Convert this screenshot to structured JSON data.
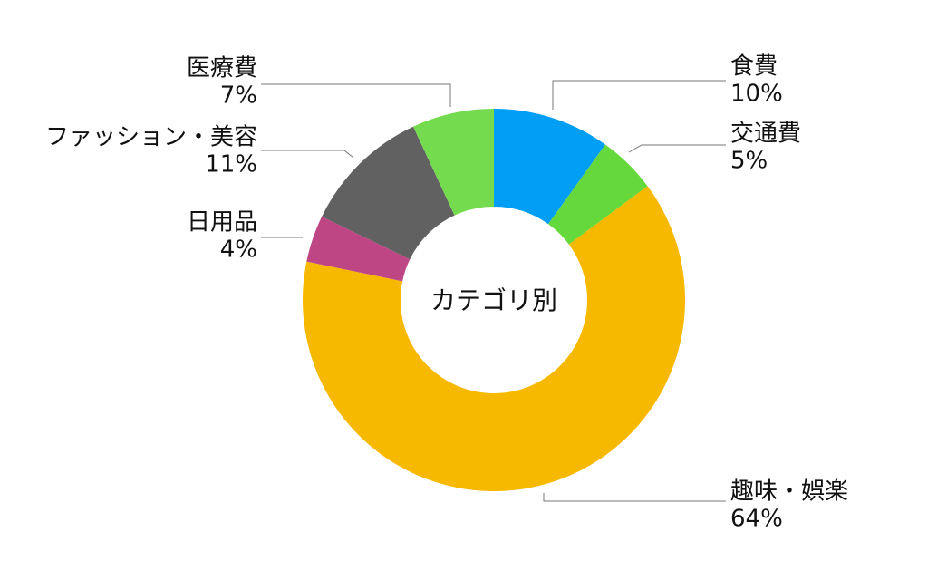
{
  "chart_data": {
    "type": "pie",
    "variant": "donut",
    "center_label": "カテゴリ別",
    "unit": "%",
    "slices": [
      {
        "label": "食費",
        "value": 10,
        "display": "10%",
        "color": "#009FF5"
      },
      {
        "label": "交通費",
        "value": 5,
        "display": "5%",
        "color": "#65D93B"
      },
      {
        "label": "趣味・娯楽",
        "value": 64,
        "display": "64%",
        "color": "#F7B800"
      },
      {
        "label": "日用品",
        "value": 4,
        "display": "4%",
        "color": "#BF4685"
      },
      {
        "label": "ファッション・美容",
        "value": 11,
        "display": "11%",
        "color": "#616161"
      },
      {
        "label": "医療費",
        "value": 7,
        "display": "7%",
        "color": "#75DB4E"
      }
    ],
    "legend": "none"
  }
}
